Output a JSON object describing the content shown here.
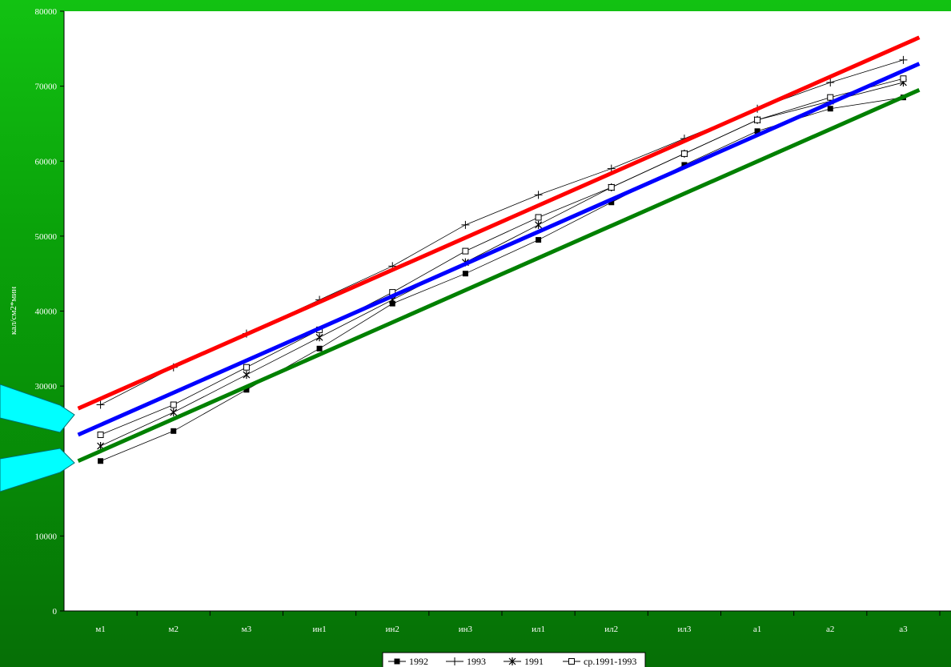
{
  "chart_data": {
    "type": "line",
    "title": "",
    "xlabel": "",
    "ylabel": "кал/см2*мин",
    "ylim": [
      0,
      80000
    ],
    "yticks": [
      0,
      10000,
      20000,
      30000,
      40000,
      50000,
      60000,
      70000,
      80000
    ],
    "ytick_labels": [
      "0",
      "10000",
      "20000",
      "30000",
      "40000",
      "50000",
      "60000",
      "70000",
      "80000"
    ],
    "categories": [
      "м1",
      "м2",
      "м3",
      "ин1",
      "ин2",
      "ин3",
      "ил1",
      "ил2",
      "ил3",
      "а1",
      "а2",
      "а3"
    ],
    "grid": false,
    "legend_position": "bottom",
    "series": [
      {
        "name": "1992",
        "marker": "filled-square",
        "values": [
          20000,
          24000,
          29500,
          35000,
          41000,
          45000,
          49500,
          54500,
          59500,
          64000,
          67000,
          68500
        ]
      },
      {
        "name": "1993",
        "marker": "plus",
        "values": [
          27500,
          32500,
          37000,
          41500,
          46000,
          51500,
          55500,
          59000,
          63000,
          67000,
          70500,
          73500
        ]
      },
      {
        "name": "1991",
        "marker": "star",
        "values": [
          22000,
          26500,
          31500,
          36500,
          41500,
          46500,
          51500,
          56500,
          61000,
          65500,
          68000,
          70500
        ]
      },
      {
        "name": "ср.1991-1993",
        "marker": "open-square",
        "values": [
          23500,
          27500,
          32500,
          37500,
          42500,
          48000,
          52500,
          56500,
          61000,
          65500,
          68500,
          71000
        ]
      }
    ],
    "trend_lines": [
      {
        "color": "#ff0000",
        "start": 27000,
        "end": 76500
      },
      {
        "color": "#0000ff",
        "start": 23500,
        "end": 73000
      },
      {
        "color": "#008000",
        "start": 20000,
        "end": 69500
      }
    ]
  }
}
